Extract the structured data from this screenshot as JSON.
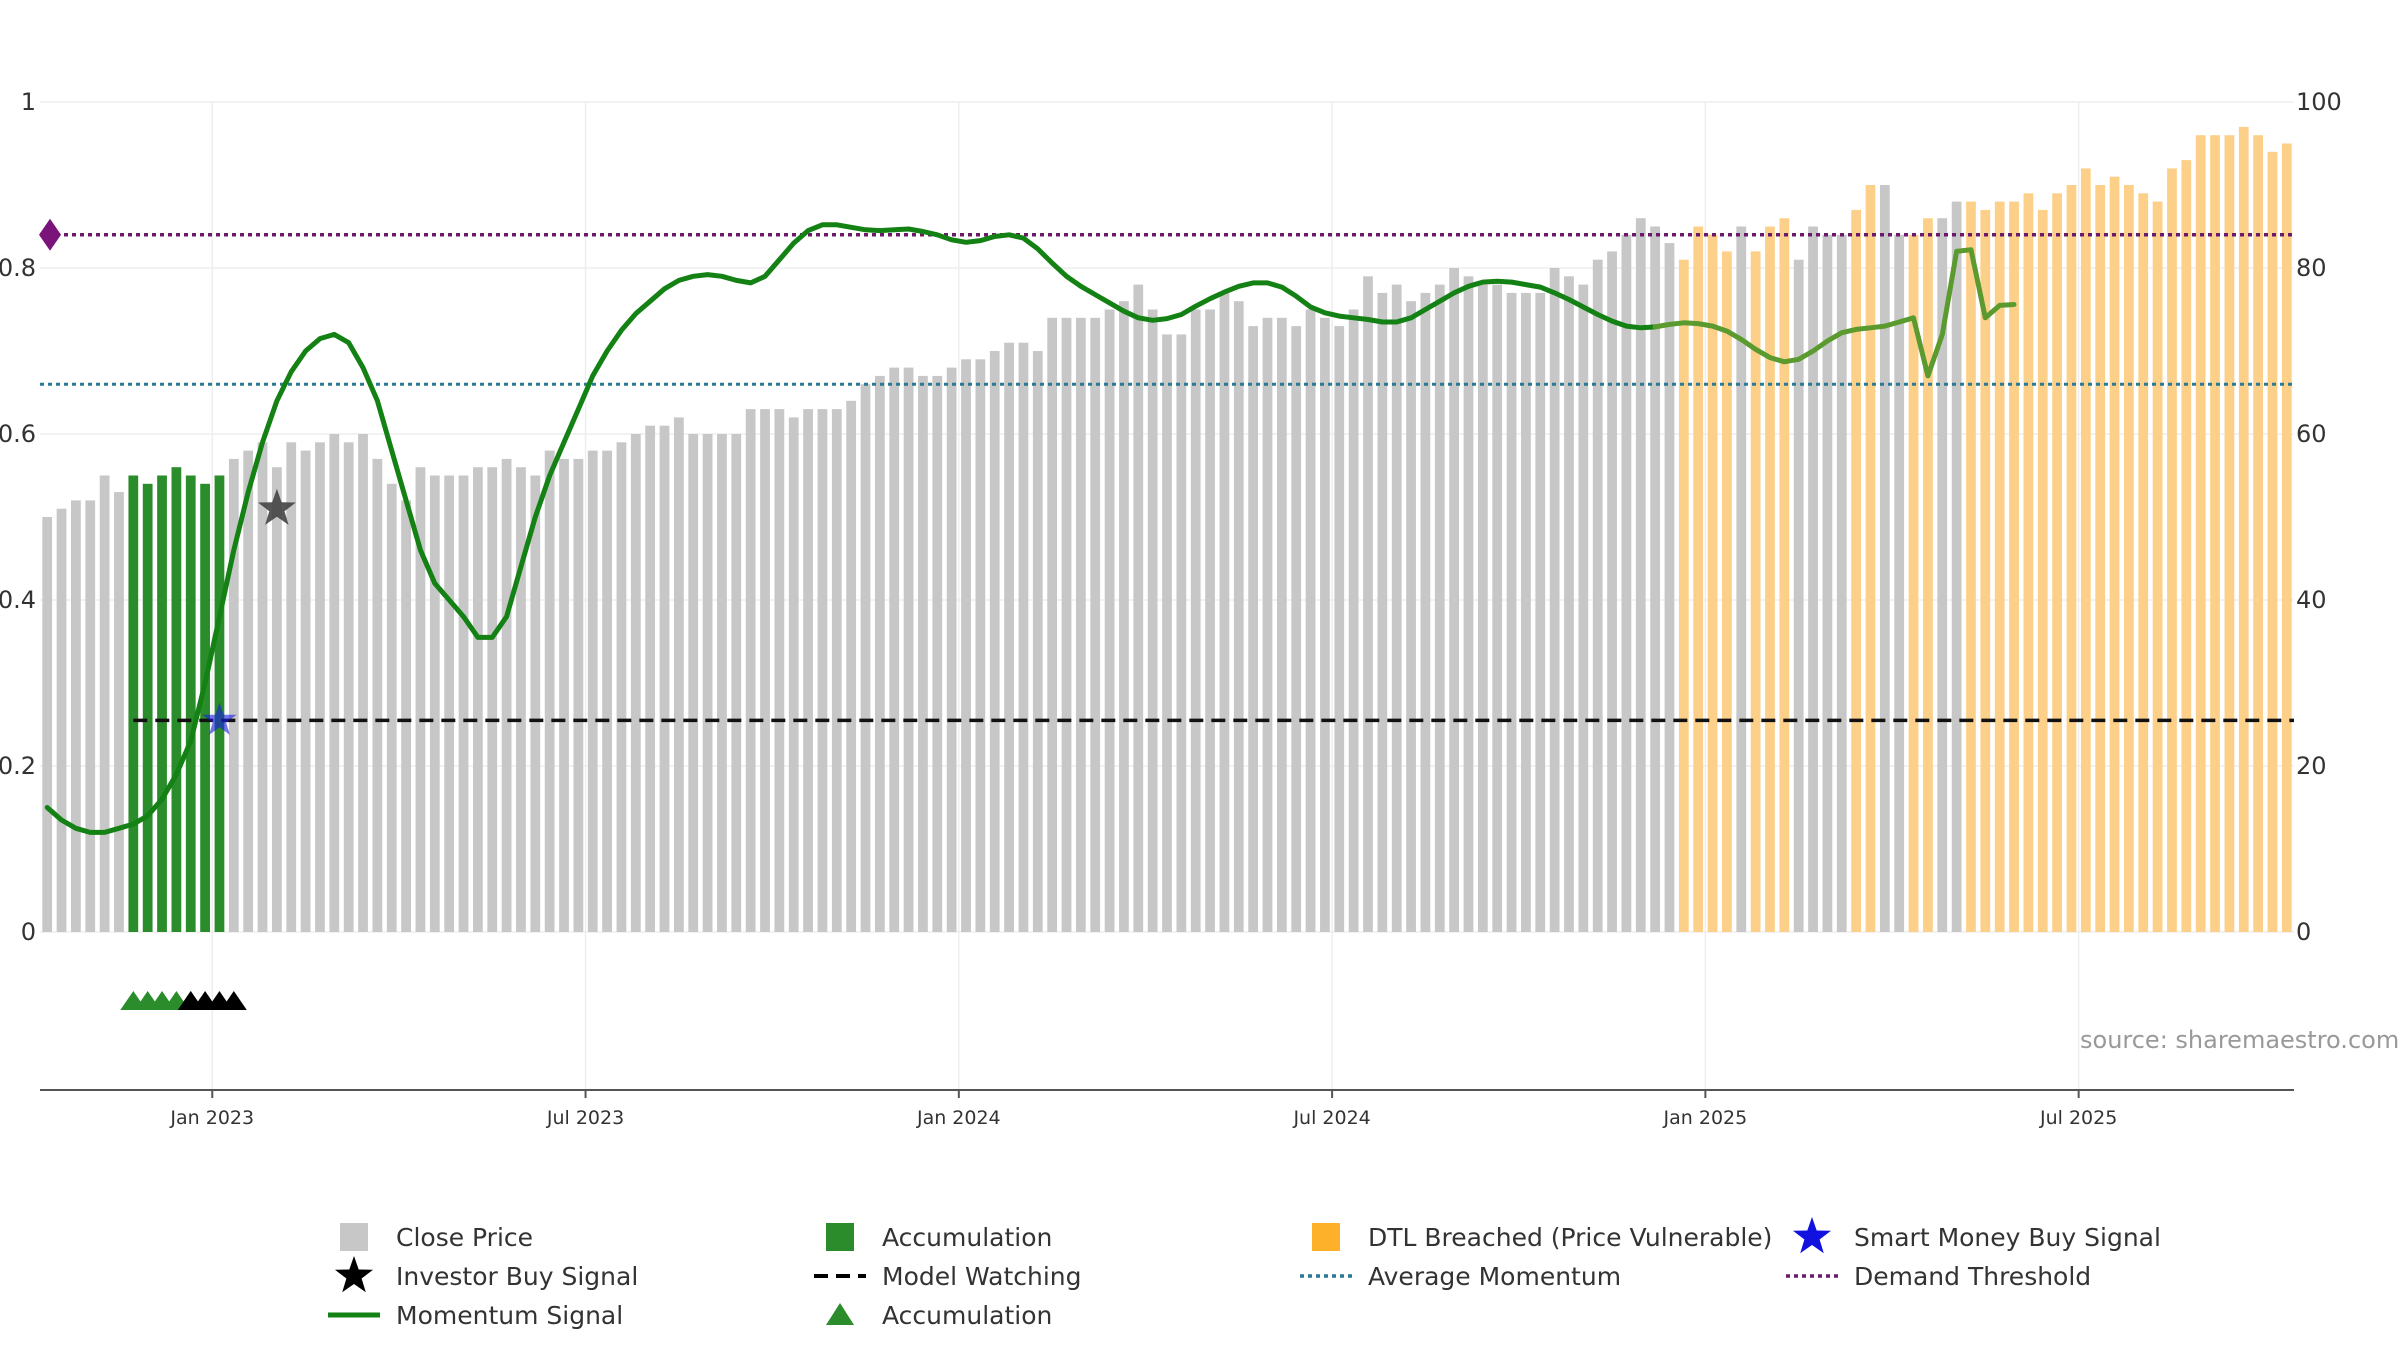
{
  "chart_data": {
    "type": "bar",
    "title": "",
    "x_ticks": [
      "Jan 2023",
      "Jul 2023",
      "Jan 2024",
      "Jul 2024",
      "Jan 2025",
      "Jul 2025"
    ],
    "x_tick_positions_weeks": [
      12,
      38,
      64,
      90,
      116,
      142
    ],
    "y_left": {
      "ticks": [
        "0",
        "0.2",
        "0.4",
        "0.6",
        "0.8",
        "1"
      ],
      "range": [
        0,
        1
      ]
    },
    "y_right": {
      "ticks": [
        "0",
        "20",
        "40",
        "60",
        "80",
        "100"
      ],
      "range": [
        0,
        100
      ]
    },
    "source_text": "source: sharemaestro.com",
    "weeks_count": 157,
    "bars": [
      0.5,
      0.51,
      0.52,
      0.52,
      0.55,
      0.53,
      0.55,
      0.54,
      0.55,
      0.56,
      0.55,
      0.54,
      0.55,
      0.57,
      0.58,
      0.59,
      0.56,
      0.59,
      0.58,
      0.59,
      0.6,
      0.59,
      0.6,
      0.57,
      0.54,
      0.52,
      0.56,
      0.55,
      0.55,
      0.55,
      0.56,
      0.56,
      0.57,
      0.56,
      0.55,
      0.58,
      0.57,
      0.57,
      0.58,
      0.58,
      0.59,
      0.6,
      0.61,
      0.61,
      0.62,
      0.6,
      0.6,
      0.6,
      0.6,
      0.63,
      0.63,
      0.63,
      0.62,
      0.63,
      0.63,
      0.63,
      0.64,
      0.66,
      0.67,
      0.68,
      0.68,
      0.67,
      0.67,
      0.68,
      0.69,
      0.69,
      0.7,
      0.71,
      0.71,
      0.7,
      0.74,
      0.74,
      0.74,
      0.74,
      0.75,
      0.76,
      0.78,
      0.75,
      0.72,
      0.72,
      0.75,
      0.75,
      0.77,
      0.76,
      0.73,
      0.74,
      0.74,
      0.73,
      0.75,
      0.74,
      0.73,
      0.75,
      0.79,
      0.77,
      0.78,
      0.76,
      0.77,
      0.78,
      0.8,
      0.79,
      0.78,
      0.78,
      0.77,
      0.77,
      0.77,
      0.8,
      0.79,
      0.78,
      0.81,
      0.82,
      0.84,
      0.86,
      0.85,
      0.83,
      0.81,
      0.85,
      0.84,
      0.82,
      0.85,
      0.82,
      0.85,
      0.86,
      0.81,
      0.85,
      0.84,
      0.84,
      0.87,
      0.9,
      0.9,
      0.84,
      0.84,
      0.86,
      0.86,
      0.88,
      0.88,
      0.87,
      0.88,
      0.88,
      0.89,
      0.87,
      0.89,
      0.9,
      0.92,
      0.9,
      0.91,
      0.9,
      0.89,
      0.88,
      0.92,
      0.93,
      0.96,
      0.96,
      0.96,
      0.97,
      0.96,
      0.94,
      0.95
    ],
    "accumulation_bar_range": [
      6,
      12
    ],
    "dtl_breached_weeks": [
      112,
      113,
      114,
      115,
      116,
      117,
      118,
      119,
      120,
      121,
      122,
      123,
      124,
      125,
      126,
      127,
      128,
      129,
      130,
      131,
      132,
      133,
      134,
      135,
      136,
      137,
      138,
      139,
      140,
      141,
      142,
      143,
      144,
      145,
      146,
      147,
      148,
      149,
      150,
      151,
      152,
      153,
      154,
      155,
      156
    ],
    "dtl_gray_exceptions": [
      112,
      113,
      118,
      122,
      123,
      124,
      125,
      128,
      129,
      132,
      133
    ],
    "momentum_signal": [
      15,
      13.5,
      12.5,
      12,
      12,
      12.5,
      13,
      14,
      16,
      19,
      23,
      30,
      38,
      46,
      53,
      59,
      64,
      67.5,
      70,
      71.5,
      72,
      71,
      68,
      64,
      58,
      52,
      46,
      42,
      40,
      38,
      35.5,
      35.5,
      38,
      44,
      50,
      55,
      59,
      63,
      67,
      70,
      72.5,
      74.5,
      76,
      77.5,
      78.5,
      79,
      79.2,
      79,
      78.5,
      78.2,
      79,
      81,
      83,
      84.5,
      85.2,
      85.2,
      84.9,
      84.6,
      84.5,
      84.6,
      84.7,
      84.4,
      84,
      83.4,
      83.1,
      83.3,
      83.8,
      84,
      83.6,
      82.3,
      80.6,
      79,
      77.8,
      76.8,
      75.8,
      74.8,
      74,
      73.7,
      73.9,
      74.4,
      75.4,
      76.3,
      77.1,
      77.8,
      78.2,
      78.2,
      77.7,
      76.6,
      75.3,
      74.6,
      74.2,
      74,
      73.8,
      73.5,
      73.5,
      74,
      75,
      76,
      77,
      77.8,
      78.3,
      78.4,
      78.3,
      78,
      77.7,
      77,
      76.2,
      75.3,
      74.4,
      73.6,
      73,
      72.8,
      72.9,
      73.2,
      73.4,
      73.3,
      73,
      72.4,
      71.4,
      70.2,
      69.2,
      68.7,
      69,
      70,
      71.2,
      72.2,
      72.6,
      72.8,
      73,
      73.5,
      74,
      67,
      72,
      82,
      82.2,
      74,
      75.5,
      75.6
    ],
    "average_momentum": 66,
    "demand_threshold": 84,
    "model_watching_level": 0.255,
    "investor_buy_signal": {
      "week": 16,
      "value": 0.51
    },
    "smart_money_buy_signal": {
      "week": 12,
      "value": 0.255
    },
    "demand_threshold_marker_value": 84,
    "triangles_green_weeks": [
      6,
      7,
      8,
      9,
      10
    ],
    "triangles_black_weeks": [
      10,
      11,
      12,
      13
    ],
    "colors": {
      "close_price": "#c7c7c7",
      "accumulation": "#2a8c2a",
      "dtl_breached": "#fdd08a",
      "momentum": "#138113",
      "momentum_late": "#5a9a2e",
      "average_momentum": "#2a7a95",
      "demand_threshold": "#6b1a6b",
      "model_watching": "#111111",
      "smart_money": "#1a1ae6",
      "grid": "#eeeeee"
    }
  },
  "legend": [
    {
      "key": "close-price",
      "label": "Close Price"
    },
    {
      "key": "accumulation-bar",
      "label": "Accumulation"
    },
    {
      "key": "dtl-breached",
      "label": "DTL Breached (Price Vulnerable)"
    },
    {
      "key": "smart-money-buy-signal",
      "label": "Smart Money Buy Signal"
    },
    {
      "key": "investor-buy-signal",
      "label": "Investor Buy Signal"
    },
    {
      "key": "model-watching",
      "label": "Model Watching"
    },
    {
      "key": "average-momentum",
      "label": "Average Momentum"
    },
    {
      "key": "demand-threshold",
      "label": "Demand Threshold"
    },
    {
      "key": "momentum-signal",
      "label": "Momentum Signal"
    },
    {
      "key": "accumulation-triangle",
      "label": "Accumulation"
    }
  ]
}
